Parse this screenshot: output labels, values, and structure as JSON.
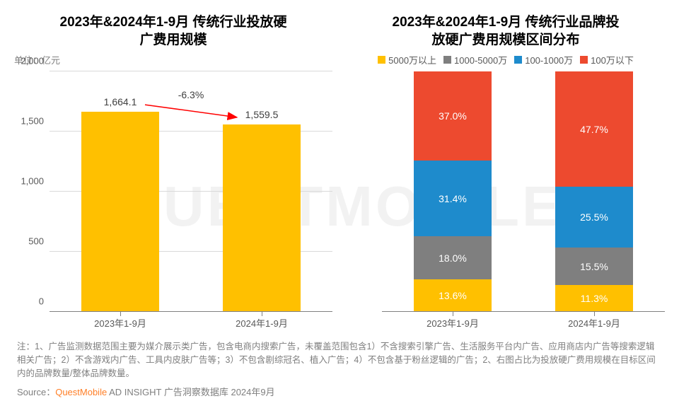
{
  "watermark": "QUESTMOBILE",
  "left_chart": {
    "type": "bar",
    "title_line1": "2023年&2024年1-9月 传统行业投放硬",
    "title_line2": "广费用规模",
    "unit_label": "单位：亿元",
    "ylim": [
      0,
      2000
    ],
    "ytick_step": 500,
    "yticks": [
      "0",
      "500",
      "1,000",
      "1,500",
      "2,000"
    ],
    "categories": [
      "2023年1-9月",
      "2024年1-9月"
    ],
    "values": [
      1664.1,
      1559.5
    ],
    "value_labels": [
      "1,664.1",
      "1,559.5"
    ],
    "bar_colors": [
      "#ffc000",
      "#ffc000"
    ],
    "change_label": "-6.3%",
    "arrow_color": "#ff0000",
    "grid_color": "#d9d9d9",
    "axis_color": "#808080",
    "label_fontsize": 14
  },
  "right_chart": {
    "type": "stacked_bar_100",
    "title_line1": "2023年&2024年1-9月 传统行业品牌投",
    "title_line2": "放硬广费用规模区间分布",
    "legend": [
      {
        "label": "5000万以上",
        "color": "#ffc000"
      },
      {
        "label": "1000-5000万",
        "color": "#7f7f7f"
      },
      {
        "label": "100-1000万",
        "color": "#1e8bcc"
      },
      {
        "label": "100万以下",
        "color": "#ed4a2f"
      }
    ],
    "categories": [
      "2023年1-9月",
      "2024年1-9月"
    ],
    "stacks": [
      [
        {
          "value": 37.0,
          "label": "37.0%",
          "color": "#ed4a2f"
        },
        {
          "value": 31.4,
          "label": "31.4%",
          "color": "#1e8bcc"
        },
        {
          "value": 18.0,
          "label": "18.0%",
          "color": "#7f7f7f"
        },
        {
          "value": 13.6,
          "label": "13.6%",
          "color": "#ffc000"
        }
      ],
      [
        {
          "value": 47.7,
          "label": "47.7%",
          "color": "#ed4a2f"
        },
        {
          "value": 25.5,
          "label": "25.5%",
          "color": "#1e8bcc"
        },
        {
          "value": 15.5,
          "label": "15.5%",
          "color": "#7f7f7f"
        },
        {
          "value": 11.3,
          "label": "11.3%",
          "color": "#ffc000"
        }
      ]
    ],
    "grid_color": "#d9d9d9",
    "axis_color": "#808080"
  },
  "footnotes": "注：1、广告监测数据范围主要为媒介展示类广告，包含电商内搜索广告，未覆盖范围包含1）不含搜索引擎广告、生活服务平台内广告、应用商店内广告等搜索逻辑相关广告；2）不含游戏内广告、工具内皮肤广告等；3）不包含剧综冠名、植入广告；4）不包含基于粉丝逻辑的广告；2、右图占比为投放硬广费用规模在目标区间内的品牌数量/整体品牌数量。",
  "source_prefix": "Source：",
  "source_brand": "QuestMobile",
  "source_rest": " AD INSIGHT 广告洞察数据库 2024年9月"
}
